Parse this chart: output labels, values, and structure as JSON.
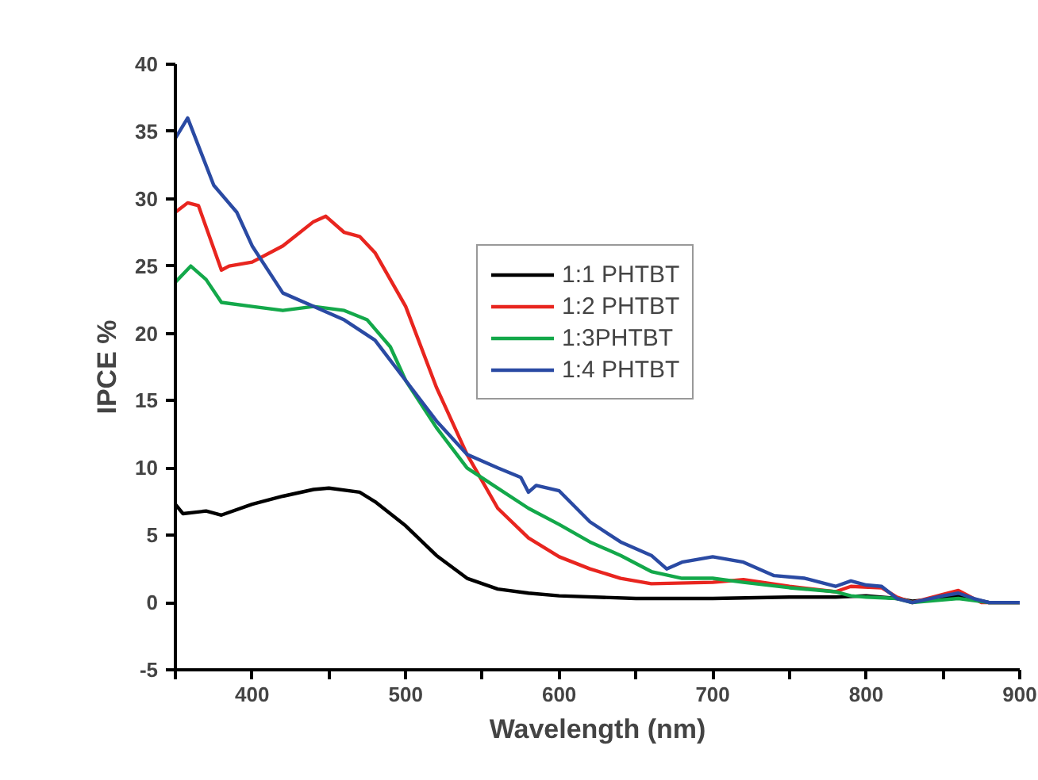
{
  "chart_data": {
    "type": "line",
    "xlabel": "Wavelength (nm)",
    "ylabel": "IPCE %",
    "xlim": [
      350,
      900
    ],
    "xticks": [
      {
        "value": 350,
        "label": null
      },
      400,
      {
        "value": 450,
        "label": null
      },
      500,
      {
        "value": 550,
        "label": null
      },
      600,
      {
        "value": 650,
        "label": null
      },
      700,
      {
        "value": 750,
        "label": null
      },
      800,
      {
        "value": 850,
        "label": null
      },
      900
    ],
    "ylim": [
      -5,
      40
    ],
    "yticks": [
      -5,
      0,
      5,
      10,
      15,
      20,
      25,
      30,
      35,
      40
    ],
    "grid": false,
    "legend": "right",
    "marker": "none",
    "line_style": "solid",
    "series": [
      {
        "name": "1:1 PHTBT",
        "color": "#000000",
        "x": [
          350,
          355,
          370,
          380,
          400,
          420,
          440,
          450,
          470,
          480,
          500,
          520,
          540,
          560,
          580,
          600,
          650,
          700,
          750,
          780,
          800,
          820,
          830,
          850,
          860,
          880,
          900
        ],
        "values": [
          7.3,
          6.6,
          6.8,
          6.5,
          7.3,
          7.9,
          8.4,
          8.5,
          8.2,
          7.5,
          5.7,
          3.5,
          1.8,
          1.0,
          0.7,
          0.5,
          0.3,
          0.3,
          0.4,
          0.4,
          0.5,
          0.3,
          0.1,
          0.3,
          0.5,
          0,
          0
        ]
      },
      {
        "name": "1:2 PHTBT",
        "color": "#e8251f",
        "x": [
          350,
          358,
          365,
          380,
          385,
          400,
          420,
          440,
          448,
          460,
          470,
          480,
          500,
          520,
          540,
          560,
          580,
          600,
          620,
          640,
          660,
          700,
          720,
          750,
          780,
          790,
          810,
          820,
          830,
          850,
          860,
          875,
          900
        ],
        "values": [
          29,
          29.7,
          29.5,
          24.7,
          25,
          25.3,
          26.5,
          28.3,
          28.7,
          27.5,
          27.2,
          26,
          22,
          16,
          11,
          7,
          4.8,
          3.4,
          2.5,
          1.8,
          1.4,
          1.5,
          1.7,
          1.2,
          0.8,
          1.2,
          1.1,
          0.4,
          0,
          0.6,
          0.9,
          0,
          0
        ]
      },
      {
        "name": "1:3PHTBT",
        "color": "#13a84a",
        "x": [
          350,
          360,
          370,
          380,
          400,
          420,
          440,
          460,
          475,
          490,
          500,
          520,
          540,
          560,
          580,
          600,
          620,
          640,
          660,
          680,
          700,
          720,
          750,
          780,
          790,
          800,
          820,
          830,
          860,
          880,
          900
        ],
        "values": [
          23.8,
          25,
          24,
          22.3,
          22,
          21.7,
          22,
          21.7,
          21,
          19,
          16.5,
          13,
          10,
          8.5,
          7,
          5.8,
          4.5,
          3.5,
          2.3,
          1.8,
          1.8,
          1.5,
          1.1,
          0.8,
          0.5,
          0.4,
          0.3,
          0,
          0.3,
          0,
          0
        ]
      },
      {
        "name": "1:4 PHTBT",
        "color": "#2a4aa3",
        "x": [
          350,
          358,
          375,
          390,
          400,
          420,
          440,
          460,
          480,
          500,
          520,
          540,
          560,
          575,
          580,
          585,
          600,
          620,
          640,
          660,
          670,
          680,
          700,
          720,
          740,
          760,
          780,
          790,
          800,
          810,
          820,
          830,
          850,
          860,
          870,
          880,
          900
        ],
        "values": [
          34.5,
          36,
          31,
          29,
          26.5,
          23,
          22,
          21,
          19.5,
          16.5,
          13.5,
          11,
          10,
          9.3,
          8.2,
          8.7,
          8.3,
          6,
          4.5,
          3.5,
          2.5,
          3,
          3.4,
          3,
          2,
          1.8,
          1.2,
          1.6,
          1.3,
          1.2,
          0.3,
          0,
          0.5,
          0.7,
          0.3,
          0,
          0
        ]
      }
    ]
  }
}
